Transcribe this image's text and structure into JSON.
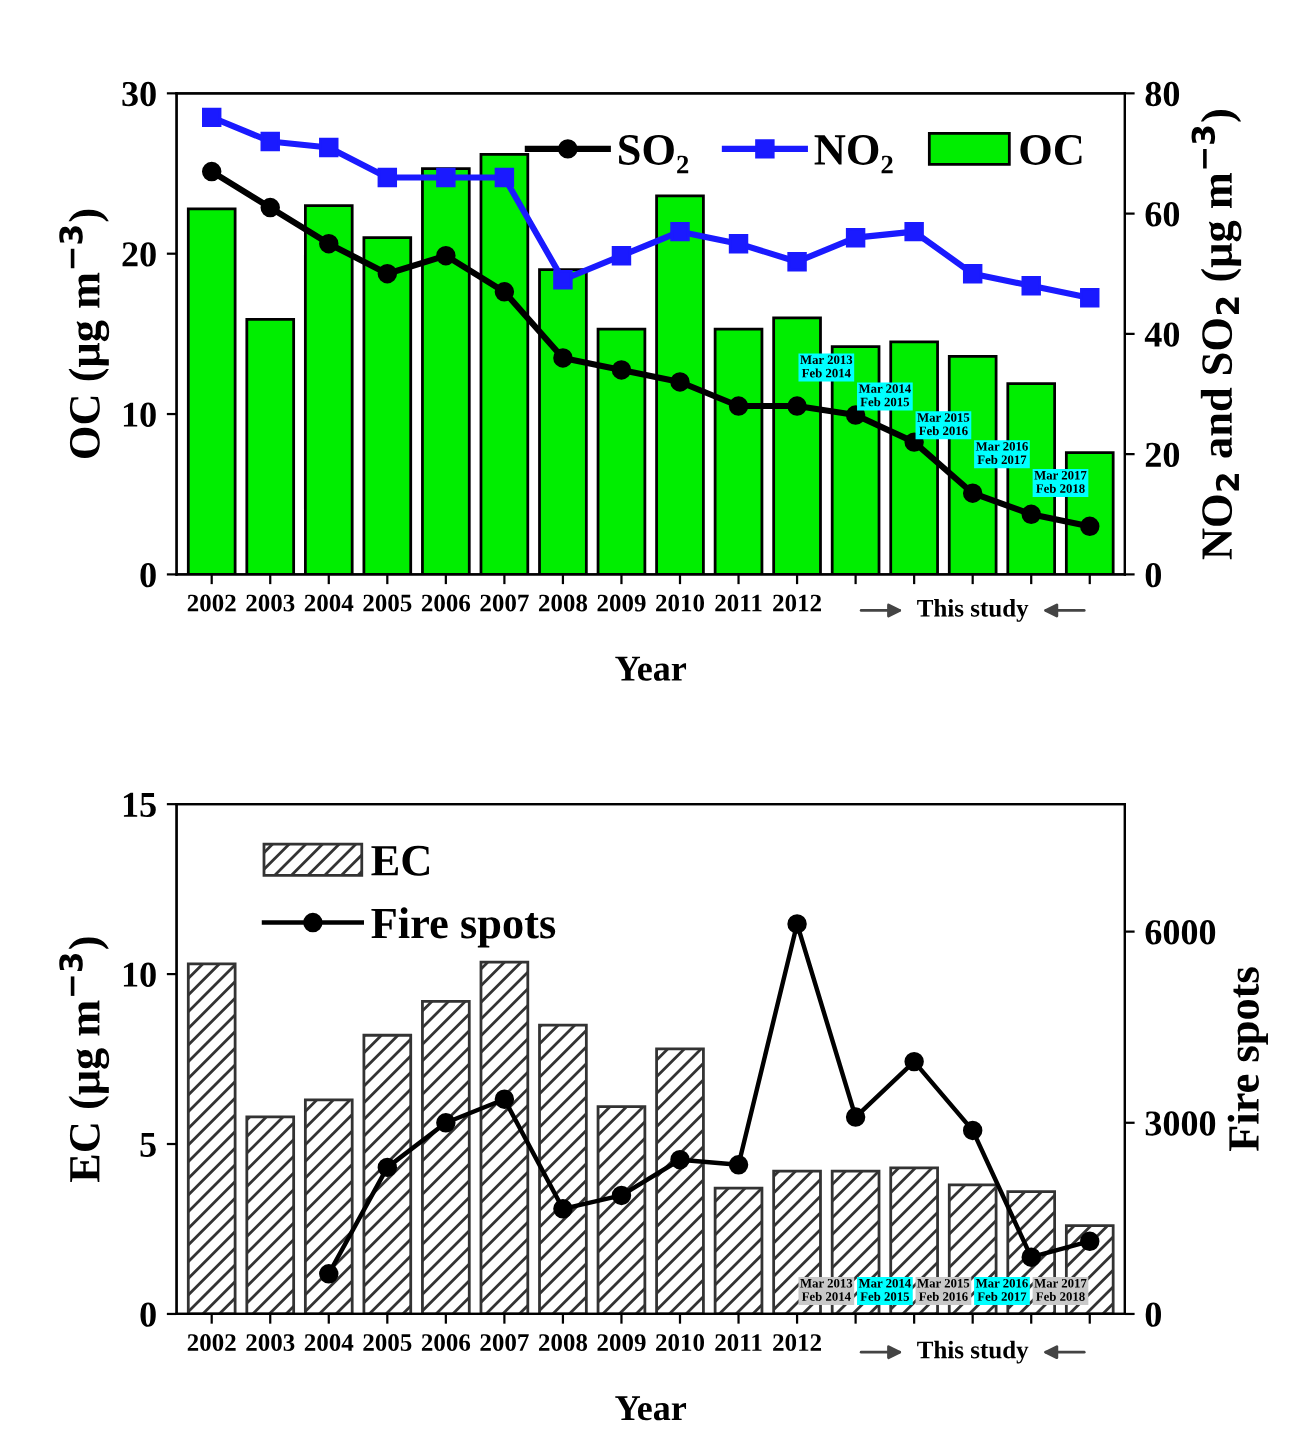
{
  "chart_data": [
    {
      "type": "bar",
      "xlabel": "Year",
      "ylabel": "OC (μg m$^{−3}$)",
      "y2label": "NO$_{2}$ and SO$_{2}$ (μg m$^{−3}$)",
      "categories": [
        "2002",
        "2003",
        "2004",
        "2005",
        "2006",
        "2007",
        "2008",
        "2009",
        "2010",
        "2011",
        "2012",
        null,
        null,
        null,
        null,
        null
      ],
      "series": [
        {
          "name": "SO₂",
          "type": "line",
          "axis": "y2",
          "color": "#000000",
          "marker": "circle",
          "values": [
            67,
            61,
            55,
            50,
            53,
            47,
            36,
            34,
            32,
            28,
            28,
            26.5,
            22,
            13.5,
            10,
            8
          ]
        },
        {
          "name": "NO₂",
          "type": "line",
          "axis": "y2",
          "color": "#1a1aff",
          "marker": "square",
          "values": [
            76,
            72,
            71,
            66,
            66,
            66,
            49,
            53,
            57,
            55,
            52,
            56,
            57,
            50,
            48,
            46
          ]
        },
        {
          "name": "OC",
          "color": "#00ee00",
          "values": [
            22.8,
            15.9,
            23.0,
            21.0,
            25.3,
            26.2,
            19.0,
            15.3,
            23.6,
            15.3,
            16.0,
            14.2,
            14.5,
            13.6,
            11.9,
            7.6
          ]
        }
      ],
      "ylim": [
        0,
        30
      ],
      "yticks": [
        0,
        10,
        20,
        30
      ],
      "y2lim": [
        0,
        80
      ],
      "y2ticks": [
        0,
        20,
        40,
        60,
        80
      ],
      "annotations": [
        "Mar 2013\nFeb 2014",
        "Mar 2014\nFeb 2015",
        "Mar 2015\nFeb 2016",
        "Mar 2016\nFeb 2017",
        "Mar 2017\nFeb 2018",
        "This study"
      ],
      "legend": "top right",
      "grid": false
    },
    {
      "type": "bar",
      "xlabel": "Year",
      "ylabel": "EC (μg m$^{−3}$)",
      "y2label": "Fire spots",
      "categories": [
        "2002",
        "2003",
        "2004",
        "2005",
        "2006",
        "2007",
        "2008",
        "2009",
        "2010",
        "2011",
        "2012",
        null,
        null,
        null,
        null,
        null
      ],
      "series": [
        {
          "name": "EC",
          "color": "#333333",
          "values": [
            10.3,
            5.8,
            6.3,
            8.2,
            9.2,
            10.35,
            8.5,
            6.1,
            7.8,
            3.7,
            4.2,
            4.2,
            4.3,
            3.8,
            3.6,
            2.6
          ]
        },
        {
          "name": "Fire spots",
          "type": "line",
          "axis": "y2",
          "color": "#000000",
          "marker": "circle",
          "values": [
            null,
            null,
            630,
            2300,
            3000,
            3370,
            1650,
            1860,
            2420,
            2340,
            6120,
            3090,
            3960,
            2880,
            890,
            1140
          ]
        }
      ],
      "ylim": [
        0,
        15
      ],
      "yticks": [
        0,
        5,
        10,
        15
      ],
      "y2lim": [
        0,
        8000
      ],
      "y2ticks": [
        0,
        3000,
        6000
      ],
      "annotations": [
        "Mar 2013\nFeb 2014",
        "Mar 2014\nFeb 2015",
        "Mar 2015\nFeb 2016",
        "Mar 2016\nFeb 2017",
        "Mar 2017\nFeb 2018",
        "This study"
      ],
      "legend": "top left",
      "grid": false
    }
  ]
}
